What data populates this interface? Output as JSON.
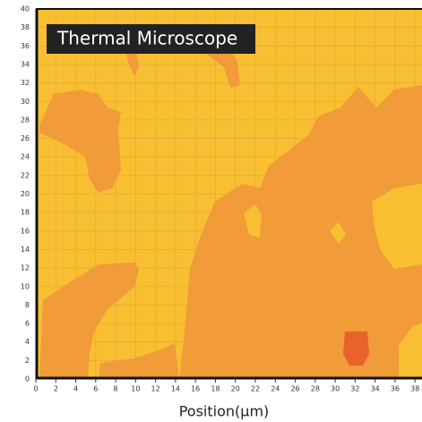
{
  "chart_data": {
    "type": "contour",
    "title": "Thermal Microscope",
    "x_label": "Position(μm)",
    "xlim": [
      0,
      38.7
    ],
    "xticks": [
      0,
      2,
      4,
      6,
      8,
      10,
      12,
      14,
      16,
      18,
      20,
      22,
      24,
      26,
      28,
      30,
      32,
      34,
      36,
      38
    ],
    "ylim": [
      0,
      40
    ],
    "yticks": [
      0,
      2,
      4,
      6,
      8,
      10,
      12,
      14,
      16,
      18,
      20,
      22,
      24,
      26,
      28,
      30,
      32,
      34,
      36,
      38,
      40
    ],
    "grid": true
  }
}
